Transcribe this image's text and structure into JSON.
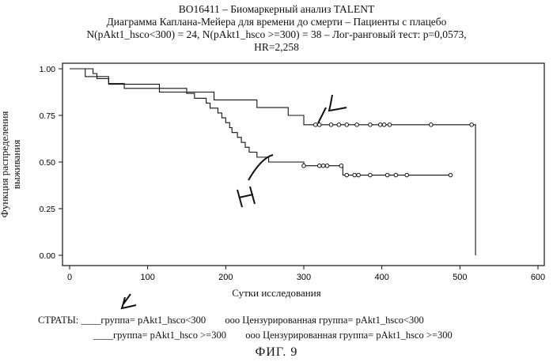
{
  "header": {
    "title": "BO16411 – Биомаркерный анализ TALENT",
    "subtitle": "Диаграмма Каплана-Мейера для времени до смерти –  Пациенты с плацебо",
    "line3": "N(pAkt1_hsco<300) = 24, N(pAkt1_hsco >=300) = 38 – Лог-ранговый тест: p=0,0573,",
    "line4": "HR=2,258"
  },
  "chart_data": {
    "type": "line",
    "title": "Диаграмма Каплана-Мейера для времени до смерти",
    "xlabel": "Сутки исследования",
    "ylabel": "Функция распределения выживания",
    "xlim": [
      0,
      600
    ],
    "ylim": [
      0,
      1
    ],
    "x_ticks": [
      0,
      100,
      200,
      300,
      400,
      500,
      600
    ],
    "y_ticks": [
      0.0,
      0.25,
      0.5,
      0.75,
      1.0
    ],
    "x_tick_labels": [
      "0",
      "100",
      "200",
      "300",
      "400",
      "500",
      "600"
    ],
    "y_tick_labels": [
      "0.00",
      "0.25",
      "0.50",
      "0.75",
      "1.00"
    ],
    "grid": false,
    "series": [
      {
        "name": "группа= pAkt1_hsco<300",
        "annotation": "L",
        "steps": [
          [
            0,
            1.0
          ],
          [
            20,
            0.958
          ],
          [
            50,
            0.917
          ],
          [
            115,
            0.875
          ],
          [
            185,
            0.833
          ],
          [
            240,
            0.792
          ],
          [
            280,
            0.75
          ],
          [
            300,
            0.7
          ],
          [
            520,
            0.0
          ]
        ],
        "censored": [
          [
            315,
            0.7
          ],
          [
            320,
            0.7
          ],
          [
            335,
            0.7
          ],
          [
            345,
            0.7
          ],
          [
            355,
            0.7
          ],
          [
            368,
            0.7
          ],
          [
            385,
            0.7
          ],
          [
            398,
            0.7
          ],
          [
            403,
            0.7
          ],
          [
            410,
            0.7
          ],
          [
            463,
            0.7
          ],
          [
            515,
            0.7
          ]
        ]
      },
      {
        "name": "группа= pAkt1_hsco >=300",
        "annotation": "H",
        "steps": [
          [
            0,
            1.0
          ],
          [
            30,
            0.974
          ],
          [
            35,
            0.947
          ],
          [
            50,
            0.921
          ],
          [
            70,
            0.895
          ],
          [
            150,
            0.868
          ],
          [
            160,
            0.842
          ],
          [
            175,
            0.816
          ],
          [
            180,
            0.789
          ],
          [
            190,
            0.763
          ],
          [
            195,
            0.737
          ],
          [
            200,
            0.711
          ],
          [
            205,
            0.684
          ],
          [
            208,
            0.658
          ],
          [
            215,
            0.632
          ],
          [
            220,
            0.605
          ],
          [
            225,
            0.579
          ],
          [
            230,
            0.553
          ],
          [
            240,
            0.526
          ],
          [
            255,
            0.5
          ],
          [
            300,
            0.48
          ],
          [
            350,
            0.43
          ],
          [
            488,
            0.43
          ]
        ],
        "censored": [
          [
            300,
            0.48
          ],
          [
            320,
            0.48
          ],
          [
            325,
            0.48
          ],
          [
            330,
            0.48
          ],
          [
            348,
            0.48
          ],
          [
            355,
            0.43
          ],
          [
            365,
            0.43
          ],
          [
            370,
            0.43
          ],
          [
            385,
            0.43
          ],
          [
            407,
            0.43
          ],
          [
            418,
            0.43
          ],
          [
            432,
            0.43
          ],
          [
            488,
            0.43
          ]
        ]
      }
    ]
  },
  "legend": {
    "label": "СТРАТЫ:",
    "row1_line": "____",
    "row1_text": "группа= pAkt1_hsco<300",
    "row1_marks": "ооо",
    "row1_censored": "Цензурированная группа= pAkt1_hsco<300",
    "row2_line": "____",
    "row2_text": "группа= pAkt1_hsco >=300",
    "row2_marks": "ооо",
    "row2_censored": "Цензурированная группа= pAkt1_hsco >=300"
  },
  "figure_label": "ФИГ. 9"
}
